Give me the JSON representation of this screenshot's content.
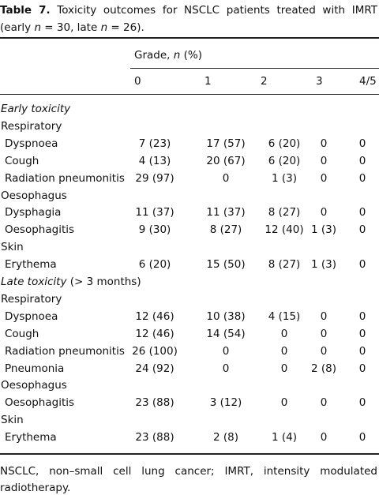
{
  "caption": {
    "label": "Table 7.",
    "text": [
      "Toxicity outcomes for NSCLC patients treated with IMRT (early ",
      "n",
      " = 30, late ",
      "n",
      " = 26)."
    ]
  },
  "header": {
    "group": [
      "Grade, ",
      "n",
      " (%)"
    ],
    "columns": [
      "0",
      "1",
      "2",
      "3",
      "4/5"
    ]
  },
  "sections": [
    {
      "title": [
        "Early toxicity"
      ],
      "groups": [
        {
          "name": "Respiratory",
          "rows": [
            {
              "label": "Dyspnoea",
              "cells": [
                "7 (23)",
                "17 (57)",
                "6 (20)",
                "0",
                "0"
              ]
            },
            {
              "label": "Cough",
              "cells": [
                "4 (13)",
                "20 (67)",
                "6 (20)",
                "0",
                "0"
              ]
            },
            {
              "label": "Radiation pneumonitis",
              "cells": [
                "29 (97)",
                "0",
                "1 (3)",
                "0",
                "0"
              ]
            }
          ]
        },
        {
          "name": "Oesophagus",
          "rows": [
            {
              "label": "Dysphagia",
              "cells": [
                "11 (37)",
                "11 (37)",
                "8 (27)",
                "0",
                "0"
              ]
            },
            {
              "label": "Oesophagitis",
              "cells": [
                "9 (30)",
                "8 (27)",
                "12 (40)",
                "1 (3)",
                "0"
              ]
            }
          ]
        },
        {
          "name": "Skin",
          "rows": [
            {
              "label": "Erythema",
              "cells": [
                "6 (20)",
                "15 (50)",
                "8 (27)",
                "1 (3)",
                "0"
              ]
            }
          ]
        }
      ]
    },
    {
      "title": [
        "Late toxicity",
        " (> 3 months)"
      ],
      "groups": [
        {
          "name": "Respiratory",
          "rows": [
            {
              "label": "Dyspnoea",
              "cells": [
                "12 (46)",
                "10 (38)",
                "4 (15)",
                "0",
                "0"
              ]
            },
            {
              "label": "Cough",
              "cells": [
                "12 (46)",
                "14 (54)",
                "0",
                "0",
                "0"
              ]
            },
            {
              "label": "Radiation pneumonitis",
              "cells": [
                "26 (100)",
                "0",
                "0",
                "0",
                "0"
              ]
            },
            {
              "label": "Pneumonia",
              "cells": [
                "24 (92)",
                "0",
                "0",
                "2 (8)",
                "0"
              ]
            }
          ]
        },
        {
          "name": "Oesophagus",
          "rows": [
            {
              "label": "Oesophagitis",
              "cells": [
                "23 (88)",
                "3 (12)",
                "0",
                "0",
                "0"
              ]
            }
          ]
        },
        {
          "name": "Skin",
          "rows": [
            {
              "label": "Erythema",
              "cells": [
                "23 (88)",
                "2 (8)",
                "1 (4)",
                "0",
                "0"
              ]
            }
          ]
        }
      ]
    }
  ],
  "footnote": "NSCLC, non–small cell lung cancer; IMRT, intensity modulated radiotherapy."
}
